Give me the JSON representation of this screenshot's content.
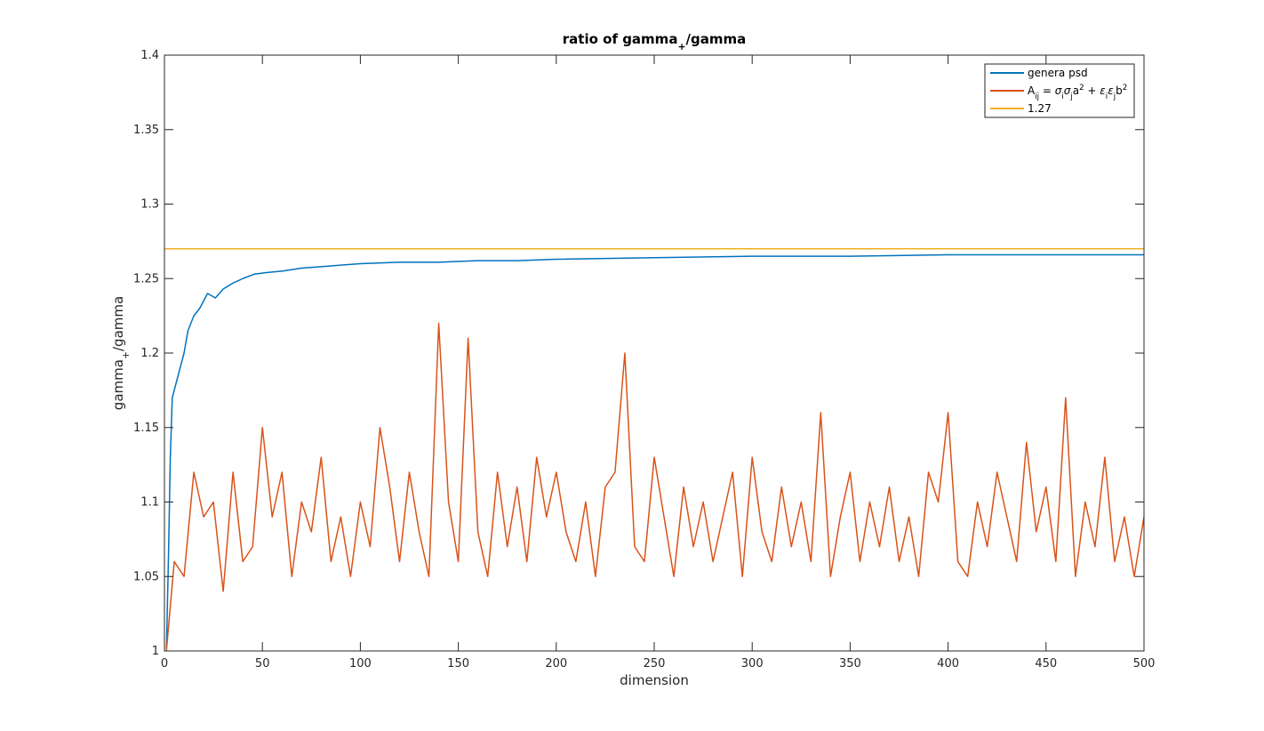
{
  "chart_data": {
    "type": "line",
    "title": "ratio of gamma",
    "title_subscript": "+",
    "title_suffix": "/gamma",
    "xlabel": "dimension",
    "ylabel": "gamma",
    "ylabel_subscript": "+",
    "ylabel_suffix": "/gamma",
    "xlim": [
      0,
      500
    ],
    "ylim": [
      1,
      1.4
    ],
    "xticks": [
      "0",
      "50",
      "100",
      "150",
      "200",
      "250",
      "300",
      "350",
      "400",
      "450",
      "500"
    ],
    "yticks": [
      "1",
      "1.05",
      "1.1",
      "1.15",
      "1.2",
      "1.25",
      "1.3",
      "1.35",
      "1.4"
    ],
    "grid": false,
    "legend_position": "top-right",
    "series": [
      {
        "name": "genera psd",
        "color": "#0072bd",
        "x": [
          1,
          2,
          3,
          4,
          5,
          6,
          8,
          10,
          12,
          15,
          18,
          22,
          26,
          30,
          35,
          40,
          46,
          52,
          60,
          70,
          80,
          90,
          100,
          120,
          140,
          160,
          180,
          200,
          250,
          300,
          350,
          400,
          450,
          500
        ],
        "y": [
          1.0,
          1.06,
          1.13,
          1.17,
          1.175,
          1.18,
          1.19,
          1.2,
          1.215,
          1.225,
          1.23,
          1.24,
          1.237,
          1.243,
          1.247,
          1.25,
          1.253,
          1.254,
          1.255,
          1.257,
          1.258,
          1.259,
          1.26,
          1.261,
          1.261,
          1.262,
          1.262,
          1.263,
          1.264,
          1.265,
          1.265,
          1.266,
          1.266,
          1.266
        ]
      },
      {
        "name": "A_ij = σ_i σ_j a^2 + ε_i ε_j b^2",
        "label_parts": [
          "A",
          "ij",
          " = ",
          "σ",
          "i",
          "σ",
          "j",
          "a",
          "2",
          " + ",
          "ε",
          "i",
          "ε",
          "j",
          "b",
          "2"
        ],
        "color": "#d95319",
        "x": [
          1,
          5,
          10,
          15,
          20,
          25,
          30,
          35,
          40,
          45,
          50,
          55,
          60,
          65,
          70,
          75,
          80,
          85,
          90,
          95,
          100,
          105,
          110,
          115,
          120,
          125,
          130,
          135,
          140,
          145,
          150,
          155,
          160,
          165,
          170,
          175,
          180,
          185,
          190,
          195,
          200,
          205,
          210,
          215,
          220,
          225,
          230,
          235,
          240,
          245,
          250,
          255,
          260,
          265,
          270,
          275,
          280,
          285,
          290,
          295,
          300,
          305,
          310,
          315,
          320,
          325,
          330,
          335,
          340,
          345,
          350,
          355,
          360,
          365,
          370,
          375,
          380,
          385,
          390,
          395,
          400,
          405,
          410,
          415,
          420,
          425,
          430,
          435,
          440,
          445,
          450,
          455,
          460,
          465,
          470,
          475,
          480,
          485,
          490,
          495,
          500
        ],
        "y": [
          1.0,
          1.06,
          1.05,
          1.12,
          1.09,
          1.1,
          1.04,
          1.12,
          1.06,
          1.07,
          1.15,
          1.09,
          1.12,
          1.05,
          1.1,
          1.08,
          1.13,
          1.06,
          1.09,
          1.05,
          1.1,
          1.07,
          1.15,
          1.11,
          1.06,
          1.12,
          1.08,
          1.05,
          1.22,
          1.1,
          1.06,
          1.21,
          1.08,
          1.05,
          1.12,
          1.07,
          1.11,
          1.06,
          1.13,
          1.09,
          1.12,
          1.08,
          1.06,
          1.1,
          1.05,
          1.11,
          1.12,
          1.2,
          1.07,
          1.06,
          1.13,
          1.09,
          1.05,
          1.11,
          1.07,
          1.1,
          1.06,
          1.09,
          1.12,
          1.05,
          1.13,
          1.08,
          1.06,
          1.11,
          1.07,
          1.1,
          1.06,
          1.16,
          1.05,
          1.09,
          1.12,
          1.06,
          1.1,
          1.07,
          1.11,
          1.06,
          1.09,
          1.05,
          1.12,
          1.1,
          1.16,
          1.06,
          1.05,
          1.1,
          1.07,
          1.12,
          1.09,
          1.06,
          1.14,
          1.08,
          1.11,
          1.06,
          1.17,
          1.05,
          1.1,
          1.07,
          1.13,
          1.06,
          1.09,
          1.05,
          1.09
        ]
      },
      {
        "name": "1.27",
        "color": "#edb120",
        "x": [
          0,
          500
        ],
        "y": [
          1.27,
          1.27
        ]
      }
    ]
  }
}
